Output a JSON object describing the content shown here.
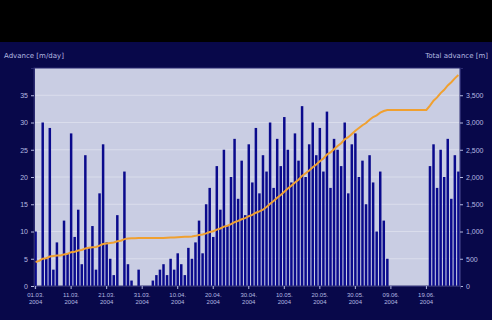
{
  "chart_data": {
    "type": "bar",
    "y_label": "Advance [m/day]",
    "y2_label": "Total advance [m]",
    "categories": [
      "01.03. 2004",
      null,
      null,
      null,
      null,
      null,
      null,
      null,
      null,
      null,
      "11.03. 2004",
      null,
      null,
      null,
      null,
      null,
      null,
      null,
      null,
      null,
      "21.03. 2004",
      null,
      null,
      null,
      null,
      null,
      null,
      null,
      null,
      null,
      "31.03. 2004",
      null,
      null,
      null,
      null,
      null,
      null,
      null,
      null,
      null,
      "10.04. 2004",
      null,
      null,
      null,
      null,
      null,
      null,
      null,
      null,
      null,
      "20.04. 2004",
      null,
      null,
      null,
      null,
      null,
      null,
      null,
      null,
      null,
      "30.04. 2004",
      null,
      null,
      null,
      null,
      null,
      null,
      null,
      null,
      null,
      "10.05. 2004",
      null,
      null,
      null,
      null,
      null,
      null,
      null,
      null,
      null,
      "20.05. 2004",
      null,
      null,
      null,
      null,
      null,
      null,
      null,
      null,
      null,
      "30.05. 2004",
      null,
      null,
      null,
      null,
      null,
      null,
      null,
      null,
      null,
      "09.06. 2004",
      null,
      null,
      null,
      null,
      null,
      null,
      null,
      null,
      null,
      "19.06. 2004",
      null,
      null,
      null,
      null,
      null,
      null,
      null,
      null,
      null
    ],
    "series": [
      {
        "type": "bar",
        "color": "#0a0a8c",
        "values": [
          10,
          0,
          30,
          5,
          29,
          3,
          8,
          0,
          12,
          6,
          28,
          9,
          14,
          4,
          24,
          7,
          11,
          3,
          17,
          26,
          8,
          5,
          2,
          13,
          0,
          21,
          4,
          1,
          0,
          3,
          0,
          0,
          0,
          1,
          2,
          3,
          4,
          2,
          5,
          3,
          6,
          4,
          2,
          7,
          5,
          8,
          12,
          6,
          15,
          18,
          9,
          22,
          14,
          25,
          11,
          20,
          27,
          16,
          23,
          13,
          26,
          19,
          29,
          17,
          24,
          21,
          30,
          18,
          27,
          22,
          31,
          25,
          19,
          28,
          23,
          33,
          20,
          26,
          30,
          24,
          29,
          21,
          32,
          18,
          27,
          25,
          22,
          30,
          17,
          26,
          28,
          20,
          23,
          15,
          24,
          19,
          10,
          21,
          12,
          5,
          0,
          0,
          0,
          0,
          0,
          0,
          0,
          0,
          0,
          0,
          0,
          22,
          26,
          18,
          25,
          20,
          27,
          16,
          24,
          21
        ]
      },
      {
        "type": "line",
        "axis": "y2",
        "color": "#f0a030",
        "values": [
          440,
          460,
          500,
          510,
          540,
          550,
          560,
          560,
          580,
          590,
          620,
          630,
          650,
          660,
          690,
          700,
          710,
          715,
          740,
          770,
          780,
          790,
          800,
          820,
          830,
          860,
          870,
          875,
          878,
          880,
          880,
          880,
          880,
          880,
          880,
          880,
          880,
          885,
          890,
          890,
          895,
          900,
          905,
          905,
          910,
          920,
          935,
          945,
          965,
          990,
          1005,
          1035,
          1055,
          1090,
          1105,
          1135,
          1170,
          1195,
          1225,
          1245,
          1280,
          1305,
          1345,
          1370,
          1400,
          1450,
          1510,
          1560,
          1620,
          1670,
          1730,
          1790,
          1840,
          1900,
          1950,
          2020,
          2070,
          2120,
          2180,
          2230,
          2290,
          2340,
          2410,
          2450,
          2510,
          2570,
          2620,
          2690,
          2730,
          2790,
          2850,
          2900,
          2950,
          2990,
          3050,
          3100,
          3130,
          3180,
          3210,
          3230,
          3230,
          3230,
          3230,
          3230,
          3230,
          3230,
          3230,
          3230,
          3230,
          3230,
          3230,
          3310,
          3400,
          3460,
          3540,
          3600,
          3680,
          3740,
          3810,
          3870
        ]
      }
    ],
    "ylim": [
      0,
      40
    ],
    "yticks": [
      0,
      5,
      10,
      15,
      20,
      25,
      30,
      35
    ],
    "y2lim": [
      0,
      4000
    ],
    "y2ticks": [
      0,
      500,
      {
        "value": 1000,
        "label": "1,000"
      },
      {
        "value": 1500,
        "label": "1,500"
      },
      {
        "value": 2000,
        "label": "2,000"
      },
      {
        "value": 2500,
        "label": "2,500"
      },
      {
        "value": 3000,
        "label": "3,000"
      },
      {
        "value": 3500,
        "label": "3,500"
      }
    ],
    "grid": true
  }
}
